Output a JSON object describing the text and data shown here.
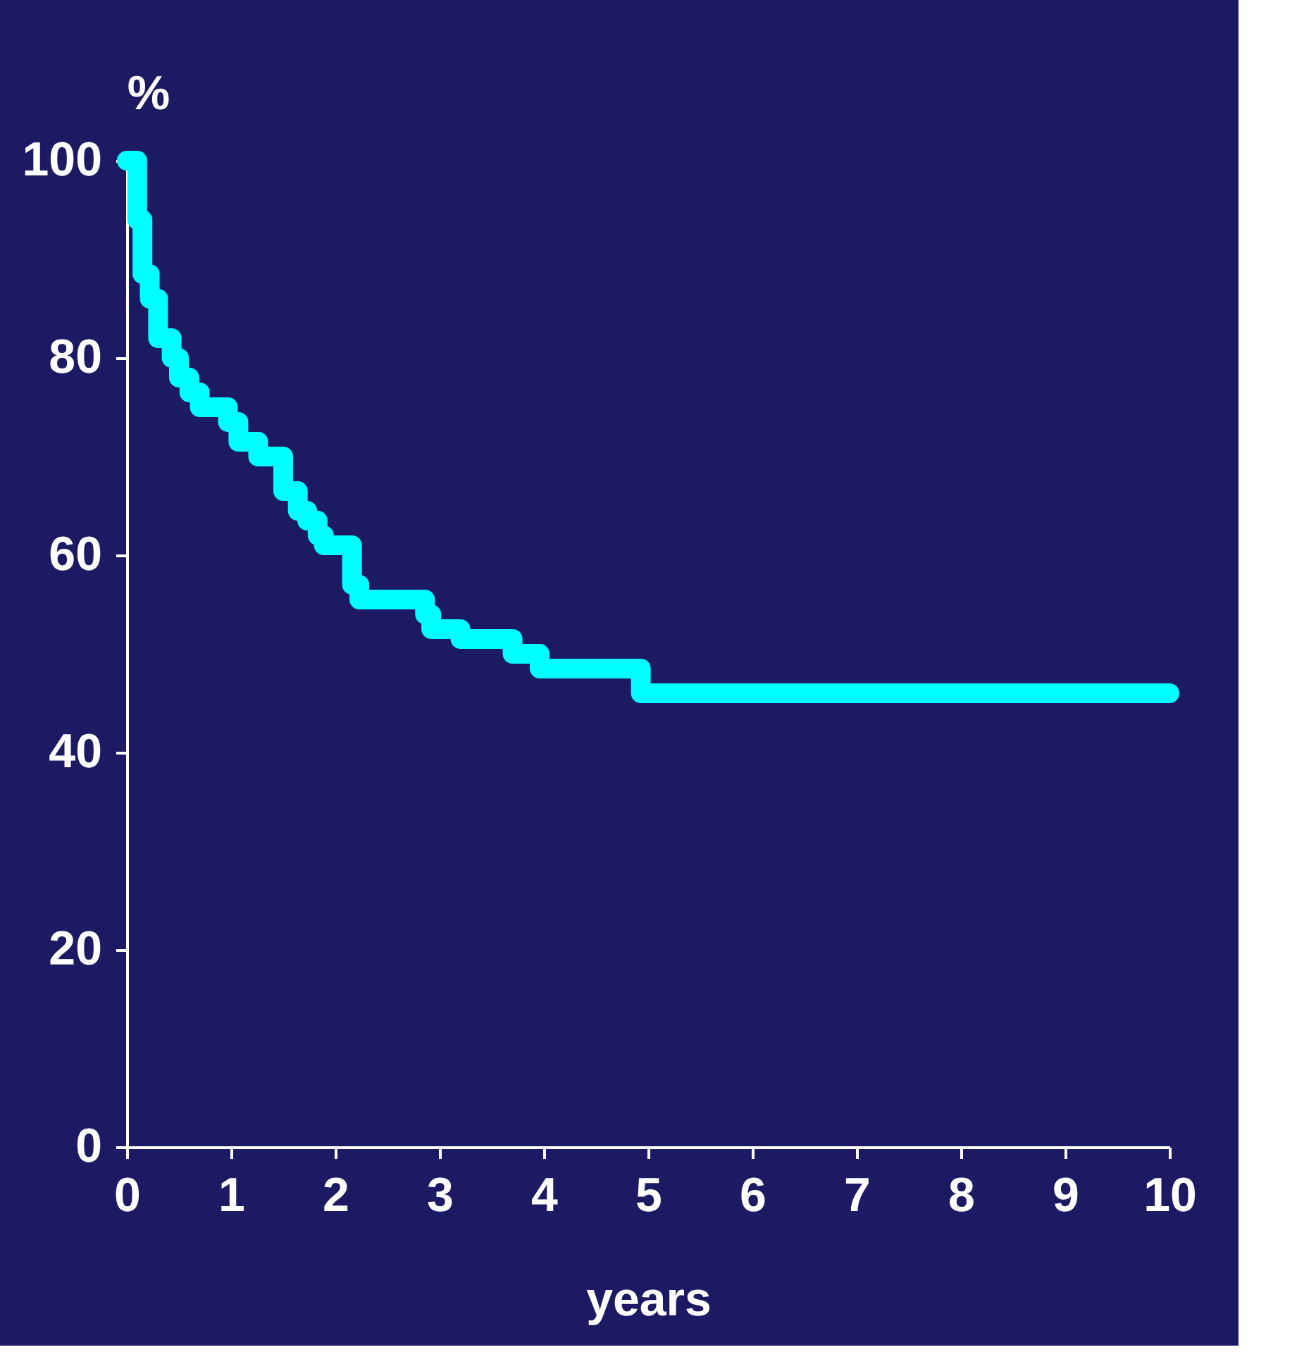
{
  "chart_data": {
    "type": "step",
    "xlabel": "years",
    "ylabel": "%",
    "x": [
      0,
      0.1,
      0.15,
      0.22,
      0.3,
      0.43,
      0.5,
      0.6,
      0.7,
      0.97,
      1.07,
      1.26,
      1.5,
      1.64,
      1.73,
      1.83,
      1.89,
      2.16,
      2.23,
      2.86,
      2.92,
      3.2,
      3.7,
      3.96,
      4.93,
      10
    ],
    "series": [
      {
        "color": "#00ffff",
        "values": [
          100,
          94,
          88.5,
          86,
          82,
          80,
          78,
          76.5,
          75,
          73.5,
          71.5,
          70,
          66.5,
          64.5,
          63.5,
          62,
          61,
          57,
          55.5,
          54,
          52.5,
          51.5,
          50,
          48.5,
          46,
          46
        ]
      }
    ],
    "xlim": [
      0,
      10
    ],
    "xticks": [
      0,
      1,
      2,
      3,
      4,
      5,
      6,
      7,
      8,
      9,
      10
    ],
    "ylim": [
      0,
      100
    ],
    "yticks": [
      0,
      20,
      40,
      60,
      80,
      100
    ],
    "grid": false,
    "legend": false,
    "line_style": "solid",
    "marker": "none"
  }
}
